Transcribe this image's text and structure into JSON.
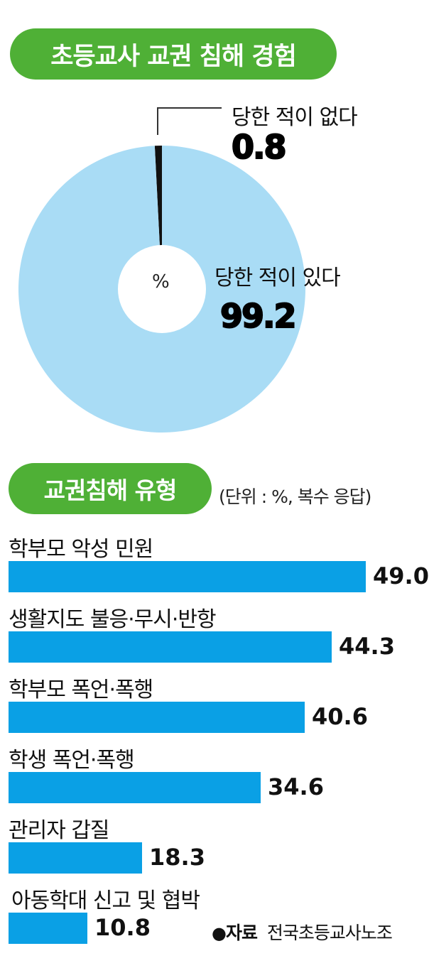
{
  "chart_data": [
    {
      "type": "pie",
      "title": "초등교사 교권 침해 경험",
      "center_label": "%",
      "slices": [
        {
          "label": "당한 적이 없다",
          "value": 0.8,
          "color": "#111111"
        },
        {
          "label": "당한 적이 있다",
          "value": 99.2,
          "color": "#a9dcf5"
        }
      ]
    },
    {
      "type": "bar",
      "orientation": "horizontal",
      "title": "교권침해 유형",
      "unit_note": "(단위 : %, 복수 응답)",
      "categories": [
        "학부모 악성 민원",
        "생활지도 불응·무시·반항",
        "학부모 폭언·폭행",
        "학생 폭언·폭행",
        "관리자 갑질",
        "아동학대 신고 및 협박"
      ],
      "values": [
        49.0,
        44.3,
        40.6,
        34.6,
        18.3,
        10.8
      ],
      "labels": [
        "49.0",
        "44.3",
        "40.6",
        "34.6",
        "18.3",
        "10.8"
      ],
      "bar_color": "#0aa0e5",
      "xlim": [
        0,
        49.0
      ]
    }
  ],
  "source": {
    "label": "자료",
    "text": "전국초등교사노조"
  }
}
